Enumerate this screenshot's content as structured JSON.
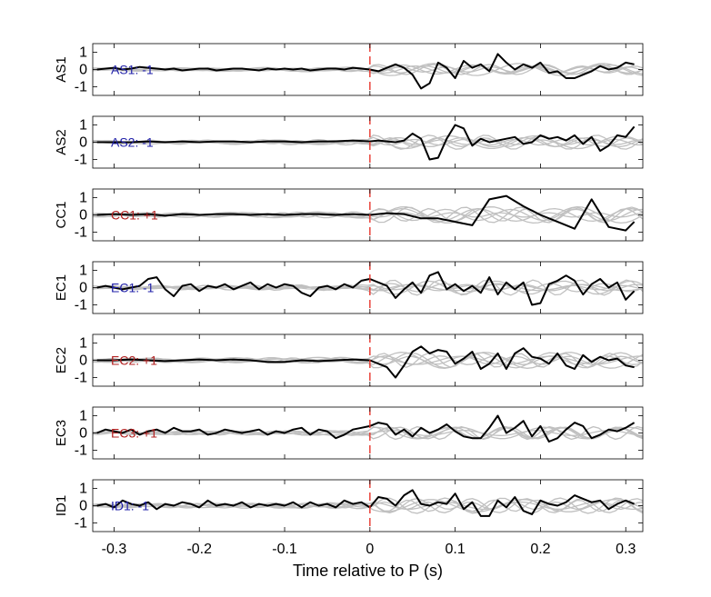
{
  "chart_data": {
    "type": "line",
    "xlabel": "Time relative to P (s)",
    "xlim": [
      -0.325,
      0.32
    ],
    "ylim": [
      -1.5,
      1.5
    ],
    "xticks": [
      -0.3,
      -0.2,
      -0.1,
      0,
      0.1,
      0.2,
      0.3
    ],
    "xtick_labels": [
      "-0.3",
      "-0.2",
      "-0.1",
      "0",
      "0.1",
      "0.2",
      "0.3"
    ],
    "yticks": [
      1,
      0,
      -1
    ],
    "ytick_labels": [
      "1",
      "0",
      "-1"
    ],
    "marker_line_x": 0,
    "colors": {
      "negative": "#1f1fa8",
      "positive": "#b22020",
      "gray": "#c0c0c0",
      "marker": "#e8352b"
    },
    "panels": [
      {
        "ylabel": "AS1",
        "annotation": "AS1: -1",
        "polarity": "negative",
        "x": [
          -0.32,
          -0.31,
          -0.3,
          -0.29,
          -0.28,
          -0.27,
          -0.26,
          -0.25,
          -0.24,
          -0.23,
          -0.22,
          -0.21,
          -0.2,
          -0.19,
          -0.18,
          -0.17,
          -0.16,
          -0.15,
          -0.14,
          -0.13,
          -0.12,
          -0.11,
          -0.1,
          -0.09,
          -0.08,
          -0.07,
          -0.06,
          -0.05,
          -0.04,
          -0.03,
          -0.02,
          -0.01,
          0.0,
          0.01,
          0.02,
          0.03,
          0.04,
          0.05,
          0.06,
          0.07,
          0.08,
          0.09,
          0.1,
          0.11,
          0.12,
          0.13,
          0.14,
          0.15,
          0.16,
          0.17,
          0.18,
          0.19,
          0.2,
          0.21,
          0.22,
          0.23,
          0.24,
          0.25,
          0.26,
          0.27,
          0.28,
          0.29,
          0.3,
          0.31
        ],
        "y": [
          0.0,
          0.05,
          0.1,
          0.0,
          0.05,
          0.15,
          0.1,
          0.05,
          0.0,
          0.05,
          -0.05,
          0.0,
          0.05,
          0.05,
          -0.05,
          0.0,
          0.05,
          0.05,
          0.0,
          -0.05,
          0.05,
          0.0,
          0.05,
          0.0,
          0.05,
          -0.05,
          0.0,
          0.05,
          0.05,
          0.0,
          0.1,
          0.05,
          0.0,
          -0.1,
          0.1,
          0.3,
          0.1,
          -0.3,
          -1.1,
          -0.8,
          0.4,
          0.1,
          -0.5,
          0.5,
          0.1,
          0.3,
          -0.1,
          0.9,
          0.4,
          0.0,
          0.3,
          0.1,
          0.4,
          -0.2,
          -0.1,
          -0.5,
          -0.5,
          -0.3,
          -0.1,
          0.2,
          0.0,
          0.1,
          0.4,
          0.3
        ]
      },
      {
        "ylabel": "AS2",
        "annotation": "AS2: -1",
        "polarity": "negative",
        "x": [
          -0.32,
          -0.3,
          -0.28,
          -0.26,
          -0.24,
          -0.22,
          -0.2,
          -0.18,
          -0.16,
          -0.14,
          -0.12,
          -0.1,
          -0.08,
          -0.06,
          -0.04,
          -0.02,
          0.0,
          0.01,
          0.02,
          0.03,
          0.04,
          0.05,
          0.06,
          0.07,
          0.08,
          0.09,
          0.1,
          0.11,
          0.12,
          0.13,
          0.14,
          0.15,
          0.16,
          0.17,
          0.18,
          0.19,
          0.2,
          0.21,
          0.22,
          0.23,
          0.24,
          0.25,
          0.26,
          0.27,
          0.28,
          0.29,
          0.3,
          0.31
        ],
        "y": [
          0.0,
          0.0,
          0.0,
          0.05,
          0.0,
          0.05,
          0.0,
          0.05,
          0.05,
          0.0,
          0.05,
          0.05,
          0.0,
          0.05,
          0.05,
          0.1,
          0.05,
          0.1,
          0.05,
          0.0,
          0.1,
          0.5,
          0.2,
          -1.0,
          -0.9,
          0.2,
          1.0,
          0.8,
          -0.2,
          0.2,
          0.0,
          0.1,
          0.2,
          0.3,
          -0.1,
          0.0,
          0.4,
          0.2,
          0.3,
          0.1,
          0.4,
          -0.1,
          0.3,
          -0.5,
          -0.2,
          0.4,
          0.3,
          0.9
        ]
      },
      {
        "ylabel": "CC1",
        "annotation": "CC1: +1",
        "polarity": "positive",
        "x": [
          -0.32,
          -0.3,
          -0.28,
          -0.26,
          -0.24,
          -0.22,
          -0.2,
          -0.18,
          -0.16,
          -0.14,
          -0.12,
          -0.1,
          -0.08,
          -0.06,
          -0.04,
          -0.02,
          0.0,
          0.02,
          0.04,
          0.06,
          0.08,
          0.1,
          0.12,
          0.14,
          0.16,
          0.18,
          0.2,
          0.22,
          0.24,
          0.26,
          0.28,
          0.3,
          0.31
        ],
        "y": [
          0.0,
          0.05,
          0.0,
          0.05,
          -0.05,
          0.05,
          0.0,
          0.05,
          0.05,
          0.0,
          0.05,
          0.0,
          0.05,
          0.05,
          0.0,
          0.05,
          0.0,
          0.1,
          0.05,
          -0.2,
          -0.2,
          -0.4,
          -0.6,
          0.9,
          1.1,
          0.5,
          0.0,
          -0.4,
          -0.8,
          0.9,
          -0.7,
          -0.9,
          -0.4
        ]
      },
      {
        "ylabel": "EC1",
        "annotation": "EC1: -1",
        "polarity": "negative",
        "x": [
          -0.32,
          -0.31,
          -0.3,
          -0.29,
          -0.28,
          -0.27,
          -0.26,
          -0.25,
          -0.24,
          -0.23,
          -0.22,
          -0.21,
          -0.2,
          -0.19,
          -0.18,
          -0.17,
          -0.16,
          -0.15,
          -0.14,
          -0.13,
          -0.12,
          -0.11,
          -0.1,
          -0.09,
          -0.08,
          -0.07,
          -0.06,
          -0.05,
          -0.04,
          -0.03,
          -0.02,
          -0.01,
          0.0,
          0.01,
          0.02,
          0.03,
          0.04,
          0.05,
          0.06,
          0.07,
          0.08,
          0.09,
          0.1,
          0.11,
          0.12,
          0.13,
          0.14,
          0.15,
          0.16,
          0.17,
          0.18,
          0.19,
          0.2,
          0.21,
          0.22,
          0.23,
          0.24,
          0.25,
          0.26,
          0.27,
          0.28,
          0.29,
          0.3,
          0.31
        ],
        "y": [
          0.0,
          0.1,
          0.0,
          -0.1,
          0.0,
          0.1,
          0.5,
          0.6,
          -0.1,
          -0.5,
          0.1,
          0.2,
          -0.2,
          0.1,
          0.0,
          0.2,
          -0.1,
          0.1,
          0.3,
          -0.1,
          0.2,
          0.0,
          0.2,
          0.1,
          -0.3,
          -0.5,
          0.0,
          0.1,
          -0.1,
          0.2,
          0.0,
          0.4,
          0.5,
          0.3,
          0.1,
          -0.6,
          -0.1,
          0.3,
          -0.3,
          0.7,
          0.9,
          -0.1,
          0.2,
          -0.2,
          0.1,
          -0.3,
          0.6,
          -0.4,
          0.3,
          -0.1,
          0.3,
          -1.0,
          -0.9,
          0.2,
          0.4,
          0.7,
          0.4,
          -0.4,
          0.2,
          0.5,
          0.0,
          0.3,
          -0.7,
          -0.2
        ]
      },
      {
        "ylabel": "EC2",
        "annotation": "EC2: +1",
        "polarity": "positive",
        "x": [
          -0.32,
          -0.3,
          -0.28,
          -0.26,
          -0.24,
          -0.22,
          -0.2,
          -0.18,
          -0.16,
          -0.14,
          -0.12,
          -0.1,
          -0.08,
          -0.06,
          -0.04,
          -0.02,
          0.0,
          0.02,
          0.03,
          0.04,
          0.05,
          0.06,
          0.07,
          0.08,
          0.09,
          0.1,
          0.11,
          0.12,
          0.13,
          0.14,
          0.15,
          0.16,
          0.17,
          0.18,
          0.19,
          0.2,
          0.21,
          0.22,
          0.23,
          0.24,
          0.25,
          0.26,
          0.27,
          0.28,
          0.29,
          0.3,
          0.31
        ],
        "y": [
          0.0,
          0.0,
          0.05,
          0.0,
          -0.05,
          0.0,
          0.05,
          0.0,
          0.05,
          0.0,
          -0.1,
          -0.1,
          0.0,
          -0.05,
          0.0,
          0.05,
          0.0,
          -0.4,
          -1.0,
          -0.3,
          0.5,
          0.8,
          0.4,
          0.6,
          0.5,
          -0.2,
          0.1,
          0.5,
          -0.5,
          -0.2,
          0.4,
          -0.5,
          0.4,
          0.7,
          0.2,
          0.1,
          -0.2,
          0.4,
          -0.3,
          -0.5,
          0.3,
          -0.1,
          0.2,
          0.0,
          0.1,
          -0.3,
          -0.4
        ]
      },
      {
        "ylabel": "EC3",
        "annotation": "EC3: +1",
        "polarity": "positive",
        "x": [
          -0.32,
          -0.31,
          -0.3,
          -0.29,
          -0.28,
          -0.27,
          -0.26,
          -0.25,
          -0.24,
          -0.23,
          -0.22,
          -0.21,
          -0.2,
          -0.19,
          -0.18,
          -0.17,
          -0.16,
          -0.15,
          -0.14,
          -0.13,
          -0.12,
          -0.11,
          -0.1,
          -0.09,
          -0.08,
          -0.07,
          -0.06,
          -0.05,
          -0.04,
          -0.03,
          -0.02,
          -0.01,
          0.0,
          0.01,
          0.02,
          0.03,
          0.04,
          0.05,
          0.06,
          0.07,
          0.08,
          0.09,
          0.1,
          0.11,
          0.12,
          0.13,
          0.14,
          0.15,
          0.16,
          0.17,
          0.18,
          0.19,
          0.2,
          0.21,
          0.22,
          0.23,
          0.24,
          0.25,
          0.26,
          0.27,
          0.28,
          0.29,
          0.3,
          0.31
        ],
        "y": [
          0.0,
          0.2,
          0.1,
          0.0,
          0.2,
          -0.1,
          0.1,
          0.2,
          0.0,
          0.3,
          0.1,
          0.1,
          0.2,
          -0.1,
          0.0,
          0.2,
          0.1,
          0.0,
          0.1,
          0.2,
          -0.1,
          0.1,
          0.0,
          0.2,
          0.3,
          -0.1,
          0.2,
          0.1,
          -0.3,
          -0.1,
          0.2,
          0.3,
          0.4,
          0.6,
          0.5,
          -0.1,
          0.2,
          -0.2,
          0.3,
          0.0,
          0.2,
          0.5,
          0.1,
          -0.2,
          -0.3,
          -0.3,
          0.3,
          1.0,
          0.0,
          0.3,
          0.7,
          -0.2,
          0.4,
          -0.5,
          -0.3,
          0.2,
          0.6,
          0.4,
          -0.3,
          -0.1,
          0.2,
          0.1,
          0.3,
          0.6
        ]
      },
      {
        "ylabel": "ID1",
        "annotation": "ID1: -1",
        "polarity": "negative",
        "x": [
          -0.32,
          -0.31,
          -0.3,
          -0.29,
          -0.28,
          -0.27,
          -0.26,
          -0.25,
          -0.24,
          -0.23,
          -0.22,
          -0.21,
          -0.2,
          -0.19,
          -0.18,
          -0.17,
          -0.16,
          -0.15,
          -0.14,
          -0.13,
          -0.12,
          -0.11,
          -0.1,
          -0.09,
          -0.08,
          -0.07,
          -0.06,
          -0.05,
          -0.04,
          -0.03,
          -0.02,
          -0.01,
          0.0,
          0.01,
          0.02,
          0.03,
          0.04,
          0.05,
          0.06,
          0.07,
          0.08,
          0.09,
          0.1,
          0.11,
          0.12,
          0.13,
          0.14,
          0.15,
          0.16,
          0.17,
          0.18,
          0.19,
          0.2,
          0.21,
          0.22,
          0.23,
          0.24,
          0.25,
          0.26,
          0.27,
          0.28,
          0.29,
          0.3,
          0.31
        ],
        "y": [
          0.0,
          0.1,
          -0.1,
          0.3,
          0.1,
          0.0,
          0.2,
          -0.2,
          0.1,
          0.0,
          0.2,
          0.1,
          -0.1,
          0.3,
          0.0,
          0.1,
          0.0,
          0.2,
          -0.1,
          0.1,
          0.0,
          0.1,
          0.0,
          0.2,
          -0.1,
          0.2,
          0.0,
          0.1,
          -0.1,
          0.3,
          0.1,
          0.2,
          -0.1,
          0.5,
          0.4,
          0.0,
          0.6,
          0.9,
          0.1,
          0.0,
          0.2,
          0.1,
          0.7,
          -0.2,
          0.2,
          -0.6,
          -0.6,
          0.3,
          -0.1,
          0.5,
          -0.3,
          -0.5,
          0.3,
          0.1,
          0.0,
          0.2,
          0.6,
          0.4,
          0.2,
          0.3,
          -0.2,
          0.1,
          0.3,
          0.1
        ]
      }
    ]
  }
}
